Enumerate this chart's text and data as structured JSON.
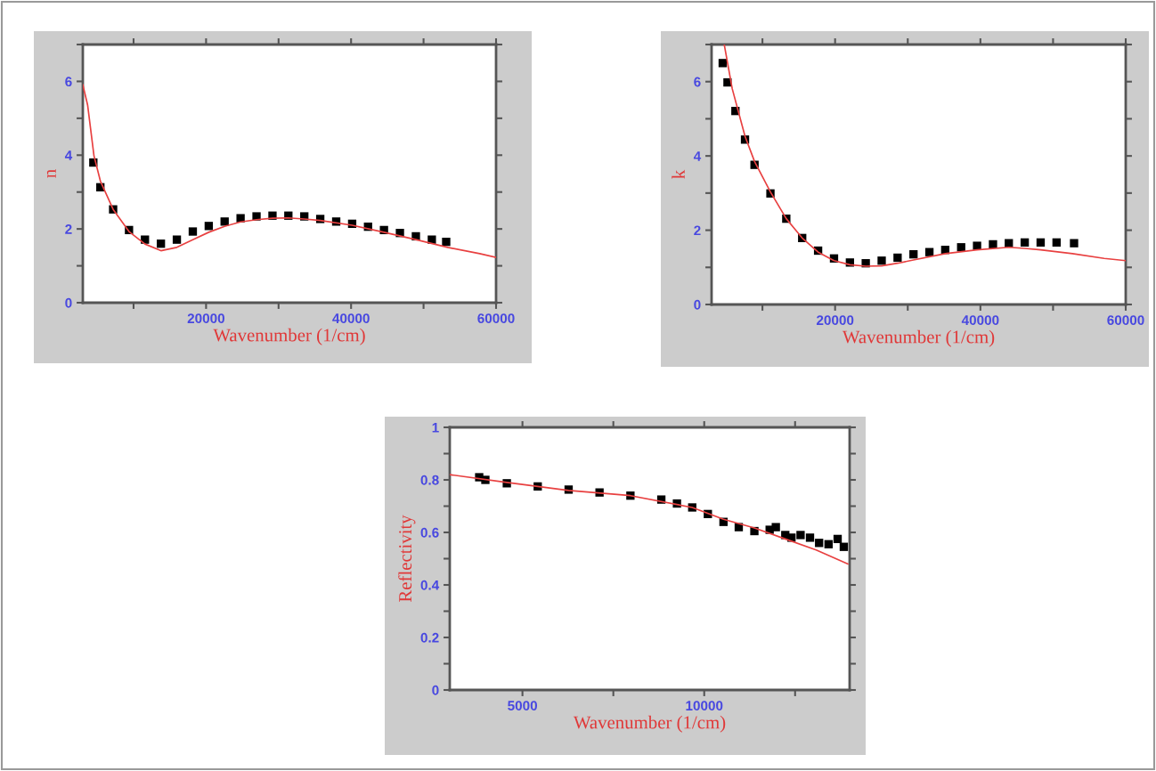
{
  "chart_data": [
    {
      "type": "scatter",
      "xlabel": "Wavenumber (1/cm)",
      "ylabel": "n",
      "xlim": [
        3000,
        60000
      ],
      "ylim": [
        0,
        7
      ],
      "xticks": [
        {
          "value": 10000,
          "label": null
        },
        20000,
        {
          "value": 30000,
          "label": null
        },
        40000,
        {
          "value": 50000,
          "label": null
        },
        60000
      ],
      "yticks": [
        0,
        {
          "value": 1,
          "label": null
        },
        2,
        {
          "value": 3,
          "label": null
        },
        4,
        {
          "value": 5,
          "label": null
        },
        6,
        {
          "value": 7,
          "label": null
        }
      ],
      "series": [
        {
          "marker": "square",
          "color": "#000000",
          "x": [
            4450,
            5420,
            7180,
            9370,
            11570,
            13770,
            15970,
            18170,
            20370,
            22560,
            24760,
            26960,
            29160,
            31350,
            33550,
            35750,
            37950,
            40150,
            42340,
            44540,
            46740,
            48940,
            51140,
            53120
          ],
          "values": [
            3.8,
            3.13,
            2.53,
            1.97,
            1.71,
            1.6,
            1.71,
            1.93,
            2.08,
            2.2,
            2.29,
            2.34,
            2.36,
            2.36,
            2.34,
            2.27,
            2.2,
            2.14,
            2.06,
            1.97,
            1.89,
            1.8,
            1.71,
            1.65
          ]
        },
        {
          "type": "line",
          "color": "#e84040",
          "x": [
            3000,
            3660,
            4540,
            5420,
            7180,
            9370,
            11570,
            13770,
            15970,
            18170,
            20370,
            22560,
            24760,
            26960,
            29160,
            31350,
            33550,
            35750,
            40150,
            44540,
            48940,
            53340,
            57740,
            60000
          ],
          "values": [
            5.91,
            5.36,
            3.98,
            3.3,
            2.53,
            1.93,
            1.59,
            1.41,
            1.5,
            1.71,
            1.91,
            2.07,
            2.19,
            2.25,
            2.29,
            2.3,
            2.27,
            2.23,
            2.1,
            1.91,
            1.71,
            1.5,
            1.33,
            1.23
          ]
        }
      ]
    },
    {
      "type": "scatter",
      "xlabel": "Wavenumber (1/cm)",
      "ylabel": "k",
      "xlim": [
        3000,
        60000
      ],
      "ylim": [
        0,
        7
      ],
      "xticks": [
        {
          "value": 10000,
          "label": null
        },
        20000,
        {
          "value": 30000,
          "label": null
        },
        40000,
        {
          "value": 50000,
          "label": null
        },
        60000
      ],
      "yticks": [
        0,
        {
          "value": 1,
          "label": null
        },
        2,
        {
          "value": 3,
          "label": null
        },
        4,
        {
          "value": 5,
          "label": null
        },
        6,
        {
          "value": 7,
          "label": null
        }
      ],
      "series": [
        {
          "marker": "square",
          "color": "#000000",
          "x": [
            4530,
            5190,
            6280,
            7600,
            8910,
            11100,
            13280,
            15470,
            17660,
            19850,
            22040,
            24220,
            26410,
            28600,
            30790,
            32980,
            35160,
            37350,
            39540,
            41730,
            43910,
            46100,
            48290,
            50480,
            52890
          ],
          "values": [
            6.5,
            5.98,
            5.21,
            4.44,
            3.76,
            2.99,
            2.31,
            1.79,
            1.45,
            1.24,
            1.13,
            1.11,
            1.18,
            1.26,
            1.35,
            1.41,
            1.47,
            1.54,
            1.58,
            1.62,
            1.65,
            1.67,
            1.67,
            1.67,
            1.65
          ]
        },
        {
          "type": "line",
          "color": "#e84040",
          "x": [
            4750,
            5840,
            7600,
            8910,
            11100,
            13280,
            15470,
            17660,
            19850,
            22040,
            24220,
            26410,
            28600,
            30790,
            35160,
            39540,
            43910,
            46100,
            48290,
            52670,
            57040,
            60000
          ],
          "values": [
            6.99,
            5.81,
            4.53,
            3.85,
            3.03,
            2.31,
            1.79,
            1.41,
            1.18,
            1.07,
            1.03,
            1.04,
            1.11,
            1.2,
            1.37,
            1.47,
            1.54,
            1.51,
            1.47,
            1.37,
            1.24,
            1.18
          ]
        }
      ]
    },
    {
      "type": "scatter",
      "xlabel": "Wavenumber (1/cm)",
      "ylabel": "Reflectivity",
      "xlim": [
        3000,
        14000
      ],
      "ylim": [
        0,
        1
      ],
      "xticks": [
        5000,
        {
          "value": 7500,
          "label": null
        },
        10000,
        {
          "value": 12500,
          "label": null
        }
      ],
      "yticks": [
        0,
        {
          "value": 0.1,
          "label": null
        },
        0.2,
        {
          "value": 0.3,
          "label": null
        },
        0.4,
        {
          "value": 0.5,
          "label": null
        },
        0.6,
        {
          "value": 0.7,
          "label": null
        },
        0.8,
        {
          "value": 0.9,
          "label": null
        },
        1
      ],
      "series": [
        {
          "marker": "square",
          "color": "#000000",
          "x": [
            3810,
            3980,
            4570,
            5420,
            6270,
            7120,
            7970,
            8820,
            9250,
            9670,
            10100,
            10530,
            10950,
            11380,
            11800,
            11970,
            12230,
            12400,
            12650,
            12910,
            13160,
            13420,
            13670,
            13840
          ],
          "values": [
            0.81,
            0.8,
            0.787,
            0.775,
            0.763,
            0.752,
            0.74,
            0.725,
            0.71,
            0.695,
            0.67,
            0.64,
            0.62,
            0.605,
            0.61,
            0.62,
            0.59,
            0.58,
            0.59,
            0.58,
            0.56,
            0.555,
            0.575,
            0.545
          ]
        },
        {
          "type": "line",
          "color": "#e84040",
          "x": [
            3000,
            4570,
            6270,
            7970,
            9670,
            10530,
            11380,
            12230,
            13080,
            13950
          ],
          "values": [
            0.82,
            0.79,
            0.76,
            0.74,
            0.695,
            0.65,
            0.617,
            0.575,
            0.533,
            0.48
          ]
        }
      ]
    }
  ]
}
